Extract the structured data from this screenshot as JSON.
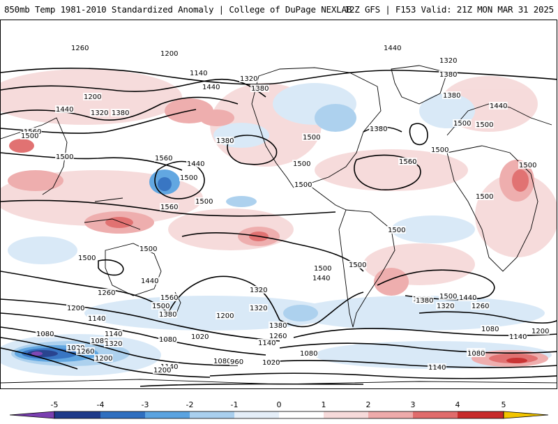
{
  "header": {
    "left_title": "850mb Temp 1981-2010 Standardized Anomaly | College of DuPage NEXLAB",
    "right_title": "12Z GFS | F153 Valid: 21Z MON MAR 31 2025"
  },
  "colorbar": {
    "ticks": [
      "-5",
      "-4",
      "-3",
      "-2",
      "-1",
      "0",
      "1",
      "2",
      "3",
      "4",
      "5"
    ],
    "colors": [
      "#7a3fb0",
      "#1e3a8a",
      "#2f6fc0",
      "#5aa3e0",
      "#a9cfee",
      "#e4eef8",
      "#ffffff",
      "#f6dada",
      "#eeaaaa",
      "#e06b6b",
      "#c72a2a",
      "#8b0b0b",
      "#f2c500"
    ]
  },
  "contour_labels": [
    {
      "text": "1260"
    },
    {
      "text": "1200"
    },
    {
      "text": "1140"
    },
    {
      "text": "1320"
    },
    {
      "text": "1380"
    },
    {
      "text": "1440"
    },
    {
      "text": "1200"
    },
    {
      "text": "1320"
    },
    {
      "text": "1380"
    },
    {
      "text": "1440"
    },
    {
      "text": "1560"
    },
    {
      "text": "1500"
    },
    {
      "text": "1500"
    },
    {
      "text": "1380"
    },
    {
      "text": "1560"
    },
    {
      "text": "1440"
    },
    {
      "text": "1500"
    },
    {
      "text": "1500"
    },
    {
      "text": "1500"
    },
    {
      "text": "1500"
    },
    {
      "text": "1380"
    },
    {
      "text": "1440"
    },
    {
      "text": "1500"
    },
    {
      "text": "1560"
    },
    {
      "text": "1500"
    },
    {
      "text": "1320"
    },
    {
      "text": "1380"
    },
    {
      "text": "1380"
    },
    {
      "text": "1500"
    },
    {
      "text": "1440"
    },
    {
      "text": "1500"
    },
    {
      "text": "1500"
    },
    {
      "text": "1500"
    },
    {
      "text": "1500"
    },
    {
      "text": "1560"
    },
    {
      "text": "1500"
    },
    {
      "text": "1500"
    },
    {
      "text": "1440"
    },
    {
      "text": "1500"
    },
    {
      "text": "1500"
    },
    {
      "text": "1440"
    },
    {
      "text": "1560"
    },
    {
      "text": "1500"
    },
    {
      "text": "1380"
    },
    {
      "text": "1320"
    },
    {
      "text": "1260"
    },
    {
      "text": "1200"
    },
    {
      "text": "1140"
    },
    {
      "text": "1080"
    },
    {
      "text": "1020"
    },
    {
      "text": "1080"
    },
    {
      "text": "1140"
    },
    {
      "text": "1320"
    },
    {
      "text": "1260"
    },
    {
      "text": "1200"
    },
    {
      "text": "1080"
    },
    {
      "text": "1020"
    },
    {
      "text": "1200"
    },
    {
      "text": "1320"
    },
    {
      "text": "1380"
    },
    {
      "text": "1260"
    },
    {
      "text": "1140"
    },
    {
      "text": "1080"
    },
    {
      "text": "960"
    },
    {
      "text": "1020"
    },
    {
      "text": "1140"
    },
    {
      "text": "1080"
    },
    {
      "text": "1200"
    },
    {
      "text": "1380"
    },
    {
      "text": "1500"
    },
    {
      "text": "1440"
    },
    {
      "text": "1320"
    },
    {
      "text": "1260"
    },
    {
      "text": "1080"
    },
    {
      "text": "1140"
    },
    {
      "text": "1200"
    },
    {
      "text": "1140"
    },
    {
      "text": "1080"
    },
    {
      "text": "1140"
    },
    {
      "text": "1380"
    }
  ]
}
